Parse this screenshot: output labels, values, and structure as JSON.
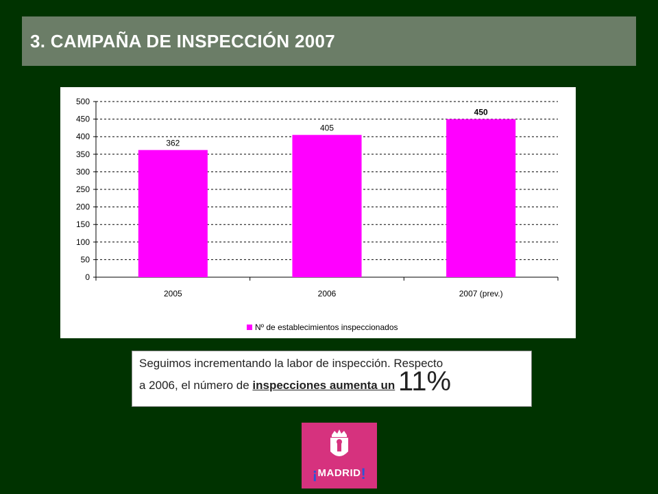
{
  "title": "3. CAMPAÑA DE INSPECCIÓN 2007",
  "chart_data": {
    "type": "bar",
    "categories": [
      "2005",
      "2006",
      "2007 (prev.)"
    ],
    "series": [
      {
        "name": "Nº de establecimientos inspeccionados",
        "values": [
          362,
          405,
          450
        ]
      }
    ],
    "data_labels": [
      "362",
      "405",
      "450"
    ],
    "ylim": [
      0,
      500
    ],
    "yticks": [
      "0",
      "50",
      "100",
      "150",
      "200",
      "250",
      "300",
      "350",
      "400",
      "450",
      "500"
    ],
    "grid": true,
    "legend_position": "bottom",
    "bar_color": "#ff00ff"
  },
  "caption": {
    "line1": "Seguimos incrementando la labor de inspección. Respecto",
    "line2_start": "a 2006, el número de ",
    "line2_underlined": "inspecciones aumenta un",
    "line2_space": " ",
    "line2_big": "11%"
  },
  "logo": {
    "excl_open": "¡",
    "text": "MADRID",
    "excl_close": "!",
    "color": "#d6327e"
  }
}
